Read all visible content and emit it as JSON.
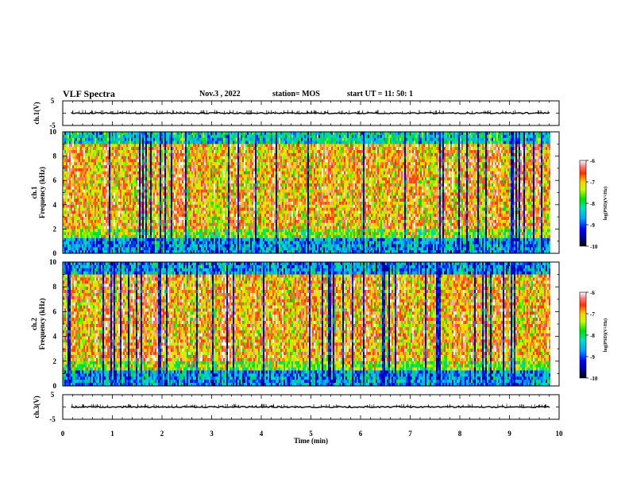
{
  "header": {
    "title": "VLF Spectra",
    "date": "Nov.3 , 2022",
    "station": "station= MOS",
    "start": "start UT = 11: 50: 1"
  },
  "chart_data": [
    {
      "type": "line",
      "panel": "ch1-waveform",
      "ylabel": "ch.1(V)",
      "ylim": [
        -5,
        5
      ],
      "yticks": [
        "5",
        "-5"
      ],
      "xlim": [
        0,
        10
      ],
      "description_values": {
        "baseline": 0
      }
    },
    {
      "type": "heatmap",
      "panel": "ch1-spectrogram",
      "ylabel": "ch.1 Frequency (kHz)",
      "ylabel_line1": "ch.1",
      "ylabel_line2": "Frequency (kHz)",
      "ylim": [
        0,
        10
      ],
      "yticks": [
        "0",
        "2",
        "4",
        "6",
        "8",
        "10"
      ],
      "xlim": [
        0,
        9.8
      ],
      "colorbar": {
        "label": "log(PSD)(V²/Hz)",
        "range": [
          -10,
          -6
        ],
        "ticks": [
          "-6",
          "-7",
          "-8",
          "-9",
          "-10"
        ]
      }
    },
    {
      "type": "heatmap",
      "panel": "ch2-spectrogram",
      "ylabel": "ch.2 Frequency (kHz)",
      "ylabel_line1": "ch.2",
      "ylabel_line2": "Frequency (kHz)",
      "ylim": [
        0,
        10
      ],
      "yticks": [
        "0",
        "2",
        "4",
        "6",
        "8",
        "10"
      ],
      "xlim": [
        0,
        9.8
      ],
      "colorbar": {
        "label": "log(PSD)(V²/Hz)",
        "range": [
          -10,
          -6
        ],
        "ticks": [
          "-6",
          "-7",
          "-8",
          "-9",
          "-10"
        ]
      }
    },
    {
      "type": "line",
      "panel": "ch3-waveform",
      "ylabel": "ch.3(V)",
      "ylim": [
        -5,
        5
      ],
      "yticks": [
        "5",
        "-5"
      ],
      "xlim": [
        0,
        10
      ],
      "xlabel": "Time (min)",
      "xticks": [
        "0",
        "1",
        "2",
        "3",
        "4",
        "5",
        "6",
        "7",
        "8",
        "9",
        "10"
      ],
      "description_values": {
        "baseline": 0
      }
    }
  ]
}
